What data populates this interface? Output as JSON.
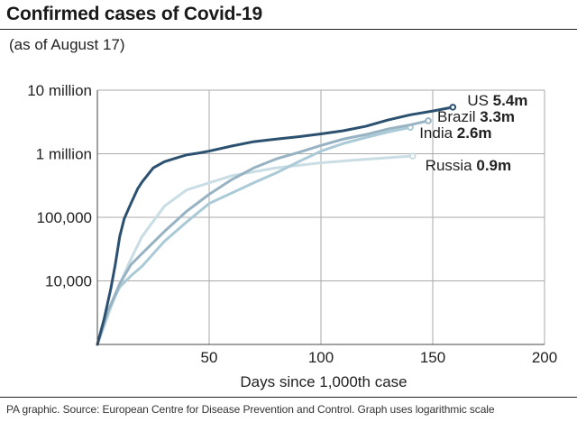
{
  "chart_data": {
    "type": "line",
    "title": "Confirmed cases of Covid-19",
    "subtitle": "(as of August 17)",
    "xlabel": "Days since 1,000th case",
    "ylabel": "",
    "y_scale": "log",
    "xlim": [
      0,
      200
    ],
    "ylim": [
      1000,
      10000000
    ],
    "x_ticks": [
      50,
      100,
      150,
      200
    ],
    "x_tick_labels": [
      "50",
      "100",
      "150",
      "200"
    ],
    "y_ticks": [
      10000,
      100000,
      1000000,
      10000000
    ],
    "y_tick_labels": [
      "10,000",
      "100,000",
      "1 million",
      "10 million"
    ],
    "grid": true,
    "series": [
      {
        "name": "Russia",
        "value_label": "0.9m",
        "color": "#c9dde4",
        "x": [
          0,
          5,
          10,
          15,
          20,
          30,
          40,
          60,
          80,
          100,
          120,
          141
        ],
        "y": [
          1000,
          3000,
          9000,
          22000,
          50000,
          150000,
          270000,
          450000,
          600000,
          720000,
          820000,
          920000
        ]
      },
      {
        "name": "India",
        "value_label": "2.6m",
        "color": "#a9cad6",
        "x": [
          0,
          5,
          10,
          15,
          20,
          30,
          40,
          50,
          60,
          70,
          80,
          90,
          100,
          110,
          120,
          130,
          140
        ],
        "y": [
          1000,
          3500,
          8000,
          12000,
          17000,
          42000,
          85000,
          165000,
          240000,
          350000,
          500000,
          750000,
          1100000,
          1450000,
          1800000,
          2200000,
          2600000
        ]
      },
      {
        "name": "Brazil",
        "value_label": "3.3m",
        "color": "#97b3c3",
        "x": [
          0,
          5,
          10,
          15,
          20,
          30,
          40,
          50,
          60,
          70,
          80,
          90,
          100,
          110,
          120,
          130,
          140,
          148
        ],
        "y": [
          1000,
          3500,
          9000,
          18000,
          27000,
          60000,
          125000,
          230000,
          390000,
          600000,
          830000,
          1050000,
          1350000,
          1700000,
          2000000,
          2450000,
          2850000,
          3300000
        ]
      },
      {
        "name": "US",
        "value_label": "5.4m",
        "color": "#2c5170",
        "x": [
          0,
          3,
          6,
          8,
          10,
          12,
          15,
          18,
          20,
          25,
          30,
          35,
          40,
          45,
          50,
          60,
          70,
          80,
          90,
          100,
          110,
          120,
          130,
          140,
          150,
          159
        ],
        "y": [
          1000,
          2500,
          7500,
          18000,
          50000,
          95000,
          165000,
          280000,
          360000,
          600000,
          750000,
          850000,
          960000,
          1020000,
          1100000,
          1320000,
          1550000,
          1700000,
          1850000,
          2050000,
          2300000,
          2700000,
          3400000,
          4100000,
          4700000,
          5400000
        ]
      }
    ]
  },
  "footer": "PA graphic. Source: European Centre for Disease Prevention and Control. Graph uses logarithmic scale"
}
